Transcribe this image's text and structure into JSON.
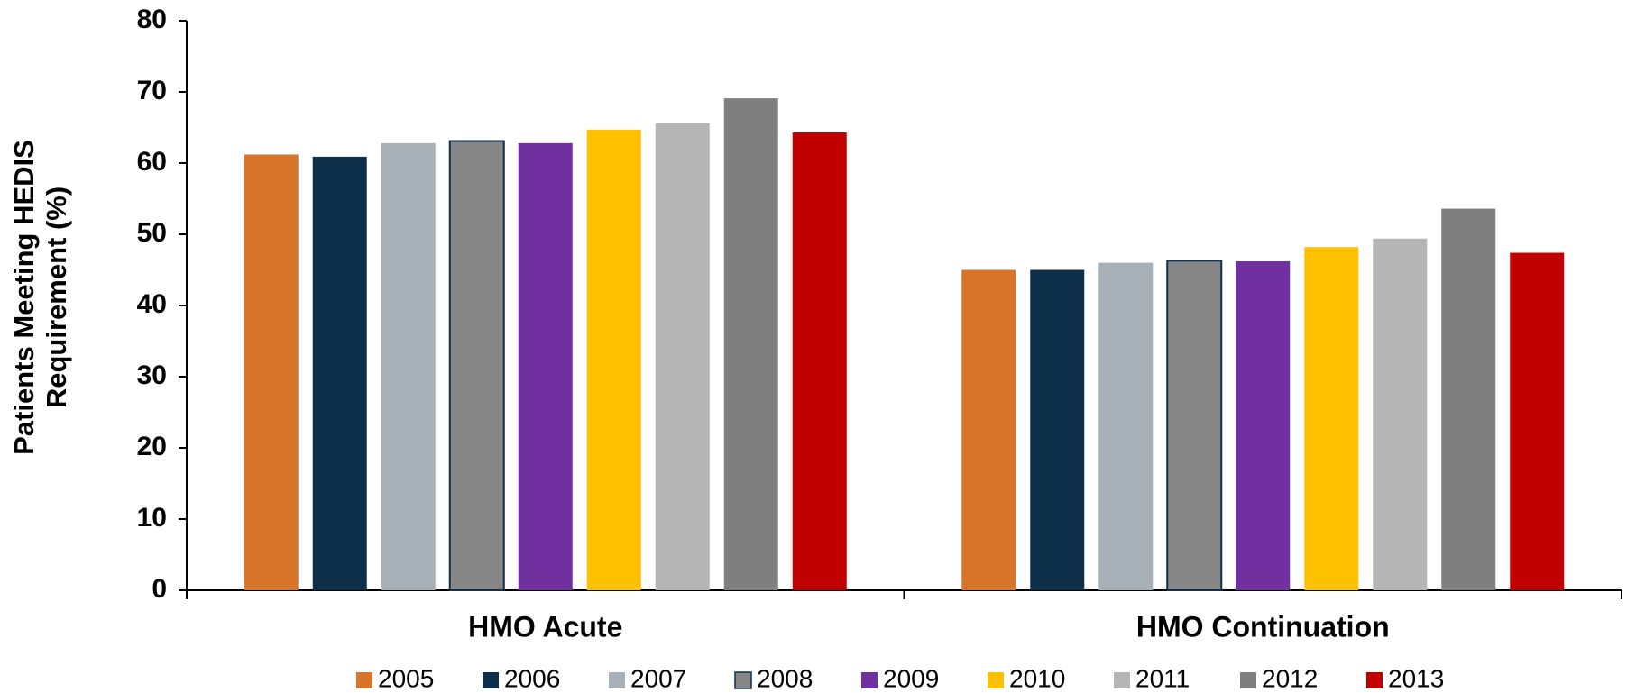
{
  "chart_data": {
    "type": "bar",
    "y_label": [
      "Patients Meeting HEDIS",
      "Requirement (%)"
    ],
    "categories": [
      "HMO Acute",
      "HMO Continuation"
    ],
    "series": [
      {
        "name": "2005",
        "color": "#d9752a",
        "values": [
          61.2,
          45.0
        ]
      },
      {
        "name": "2006",
        "color": "#0e2f4a",
        "values": [
          60.9,
          45.0
        ]
      },
      {
        "name": "2007",
        "color": "#a6b0b6",
        "values": [
          62.8,
          46.0
        ]
      },
      {
        "name": "2008",
        "color": "#868686",
        "stroke": "#0e2f4a",
        "values": [
          63.1,
          46.3
        ]
      },
      {
        "name": "2009",
        "color": "#7030a0",
        "values": [
          62.8,
          46.2
        ]
      },
      {
        "name": "2010",
        "color": "#ffc000",
        "values": [
          64.7,
          48.2
        ]
      },
      {
        "name": "2011",
        "color": "#b5b5b5",
        "values": [
          65.6,
          49.4
        ]
      },
      {
        "name": "2012",
        "color": "#7f7f7f",
        "values": [
          69.1,
          53.6
        ]
      },
      {
        "name": "2013",
        "color": "#c00000",
        "values": [
          64.3,
          47.4
        ]
      }
    ],
    "ylim": [
      0,
      80
    ],
    "yticks": [
      0,
      10,
      20,
      30,
      40,
      50,
      60,
      70,
      80
    ],
    "grid": false,
    "legend": "bottom"
  }
}
